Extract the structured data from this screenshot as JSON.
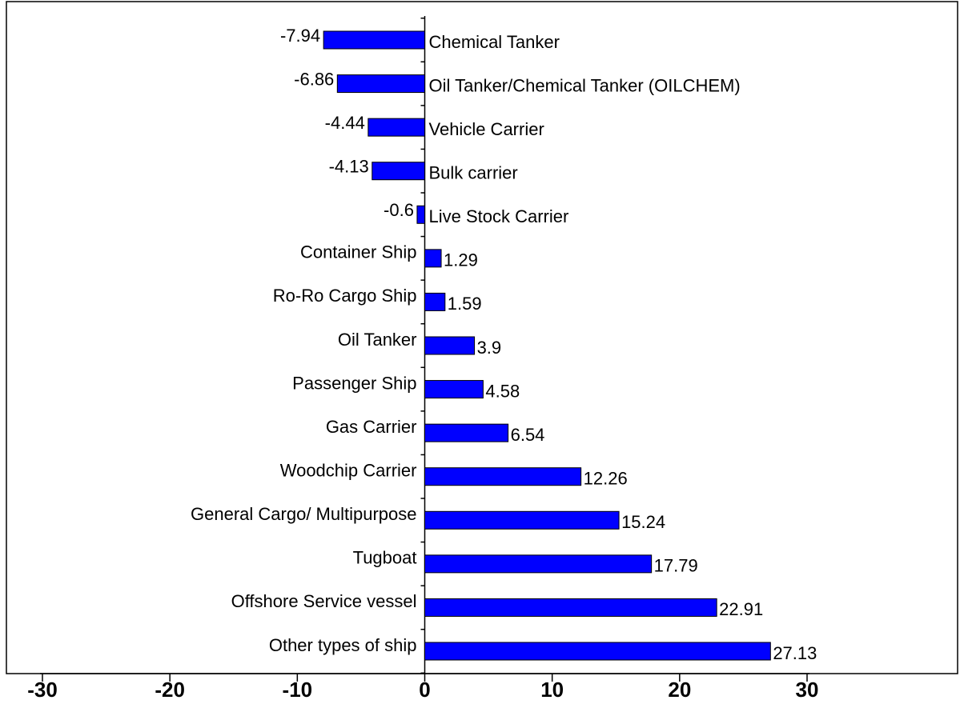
{
  "chart_data": {
    "type": "barh",
    "categories": [
      "Chemical Tanker",
      "Oil Tanker/Chemical Tanker (OILCHEM)",
      "Vehicle Carrier",
      "Bulk carrier",
      "Live Stock Carrier",
      "Container Ship",
      "Ro-Ro Cargo Ship",
      "Oil Tanker",
      "Passenger Ship",
      "Gas Carrier",
      "Woodchip Carrier",
      "General Cargo/ Multipurpose",
      "Tugboat",
      "Offshore Service vessel",
      "Other types of ship"
    ],
    "values": [
      -7.94,
      -6.86,
      -4.44,
      -4.13,
      -0.6,
      1.29,
      1.59,
      3.9,
      4.58,
      6.54,
      12.26,
      15.24,
      17.79,
      22.91,
      27.13
    ],
    "color": "#0000ff",
    "xlim": [
      -30,
      30
    ],
    "xticks": [
      -30,
      -20,
      -10,
      0,
      10,
      20,
      30
    ]
  }
}
